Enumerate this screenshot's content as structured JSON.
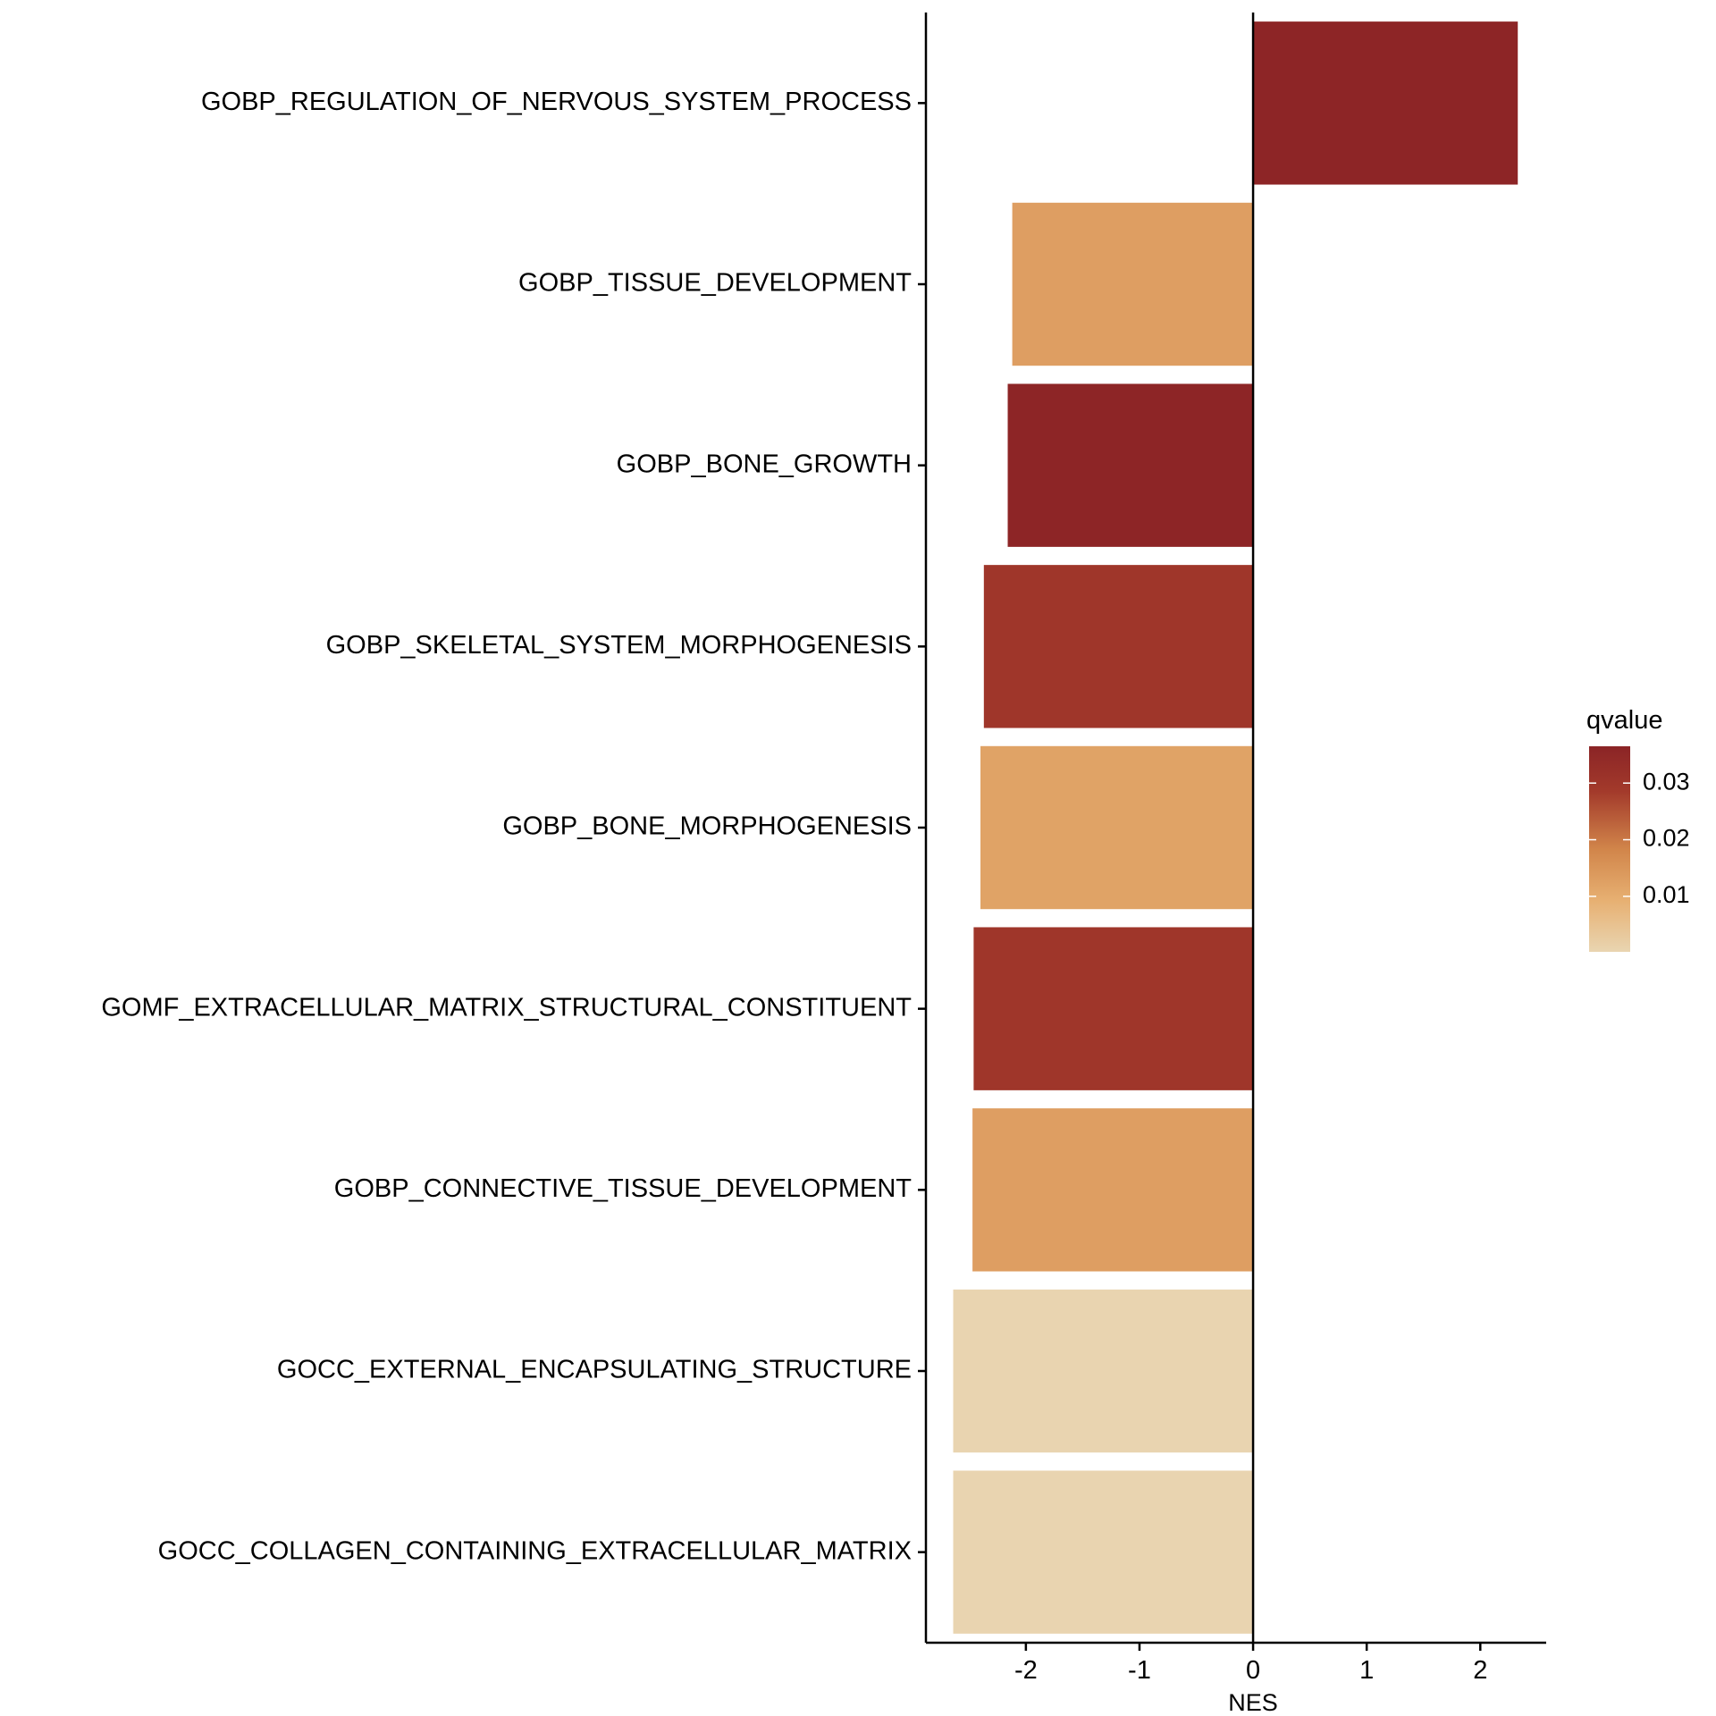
{
  "chart_data": {
    "type": "bar",
    "orientation": "horizontal",
    "categories": [
      "GOBP_REGULATION_OF_NERVOUS_SYSTEM_PROCESS",
      "GOBP_TISSUE_DEVELOPMENT",
      "GOBP_BONE_GROWTH",
      "GOBP_SKELETAL_SYSTEM_MORPHOGENESIS",
      "GOBP_BONE_MORPHOGENESIS",
      "GOMF_EXTRACELLULAR_MATRIX_STRUCTURAL_CONSTITUENT",
      "GOBP_CONNECTIVE_TISSUE_DEVELOPMENT",
      "GOCC_EXTERNAL_ENCAPSULATING_STRUCTURE",
      "GOCC_COLLAGEN_CONTAINING_EXTRACELLULAR_MATRIX"
    ],
    "values": [
      2.33,
      -2.12,
      -2.16,
      -2.37,
      -2.4,
      -2.46,
      -2.47,
      -2.64,
      -2.64
    ],
    "qvalue": [
      0.036,
      0.013,
      0.036,
      0.03,
      0.012,
      0.03,
      0.013,
      0.0004,
      0.0004
    ],
    "xlabel": "NES",
    "ylabel": "",
    "xlim": [
      -2.88,
      2.58
    ],
    "xticks": [
      -2,
      -1,
      0,
      1,
      2
    ],
    "xtick_labels": [
      "-2",
      "-1",
      "0",
      "1",
      "2"
    ],
    "legend": {
      "title": "qvalue",
      "placement": "right",
      "range": [
        0.0002,
        0.0365
      ],
      "ticks": [
        0.01,
        0.02,
        0.03
      ],
      "tick_labels": [
        "0.01",
        "0.02",
        "0.03"
      ],
      "colors": [
        "#e9d5b1",
        "#e7b072",
        "#d1854a",
        "#a33a2b",
        "#8b2426"
      ]
    },
    "grid": false
  }
}
